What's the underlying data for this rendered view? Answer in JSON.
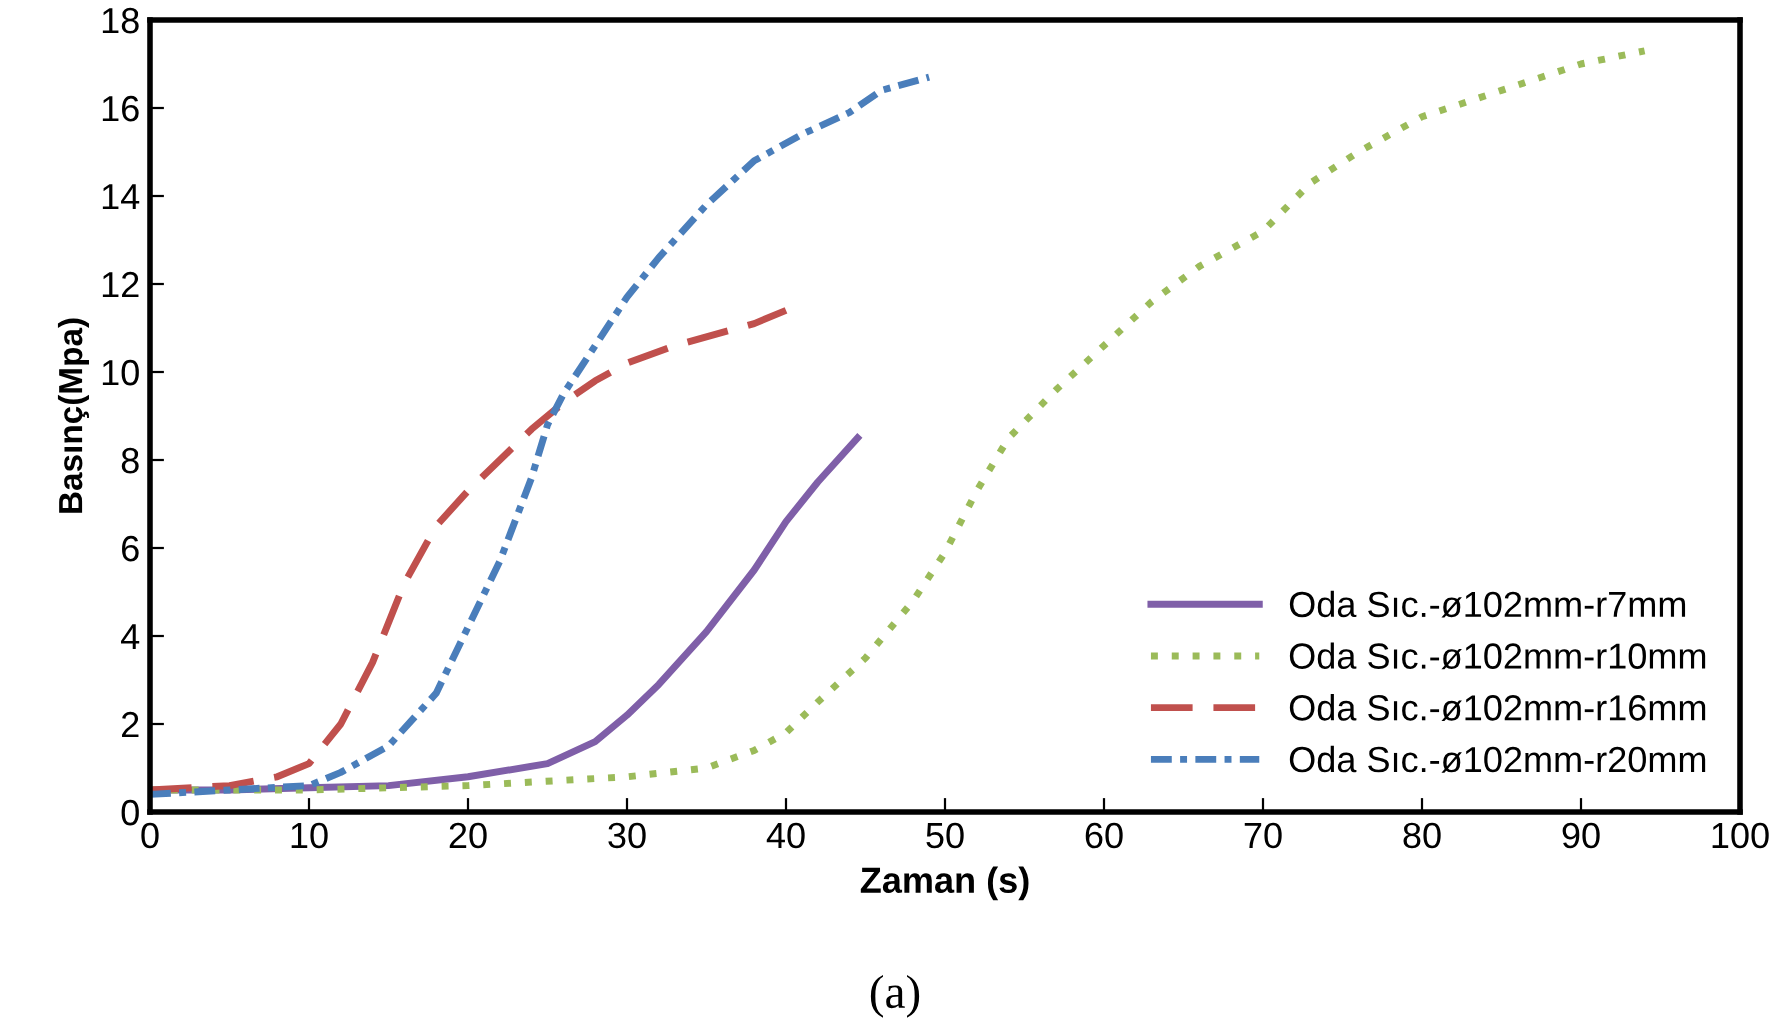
{
  "chart_data": {
    "type": "line",
    "xlabel": "Zaman (s)",
    "ylabel": "Basınç(Mpa)",
    "annotations": [
      "(a)"
    ],
    "xlim": [
      0,
      100
    ],
    "xticks": [
      0,
      10,
      20,
      30,
      40,
      50,
      60,
      70,
      80,
      90,
      100
    ],
    "ylim": [
      0,
      18
    ],
    "yticks": [
      0,
      2,
      4,
      6,
      8,
      10,
      12,
      14,
      16,
      18
    ],
    "grid": false,
    "legend": "bottom right",
    "marker": "none",
    "series": [
      {
        "name": "Oda Sıc.-ø102mm-r7mm",
        "color": "#7f5fa8",
        "line_style": "solid",
        "x": [
          0,
          5,
          10,
          15,
          20,
          25,
          28,
          30,
          32,
          35,
          38,
          40,
          42,
          44.5
        ],
        "values": [
          0.5,
          0.5,
          0.55,
          0.6,
          0.8,
          1.1,
          1.6,
          2.2,
          2.9,
          4.1,
          5.5,
          6.6,
          7.5,
          8.5
        ]
      },
      {
        "name": "Oda Sıc.-ø102mm-r10mm",
        "color": "#9bbb59",
        "line_style": "dotted",
        "x": [
          0,
          10,
          20,
          30,
          35,
          38,
          40,
          42,
          45,
          48,
          50,
          52,
          54,
          57,
          60,
          63,
          66,
          70,
          73,
          76,
          80,
          85,
          90,
          94
        ],
        "values": [
          0.5,
          0.5,
          0.6,
          0.8,
          1.0,
          1.4,
          1.8,
          2.5,
          3.5,
          4.8,
          5.9,
          7.3,
          8.5,
          9.6,
          10.6,
          11.6,
          12.4,
          13.2,
          14.3,
          15.0,
          15.8,
          16.4,
          17.0,
          17.3
        ]
      },
      {
        "name": "Oda Sıc.-ø102mm-r16mm",
        "color": "#c0504d",
        "line_style": "dashed",
        "x": [
          0,
          5,
          8,
          10,
          12,
          14,
          16,
          18,
          20,
          22,
          24,
          26,
          28,
          30,
          33,
          36,
          38,
          40
        ],
        "values": [
          0.5,
          0.6,
          0.8,
          1.1,
          2.0,
          3.4,
          5.2,
          6.5,
          7.3,
          8.0,
          8.7,
          9.3,
          9.8,
          10.2,
          10.6,
          10.9,
          11.1,
          11.4
        ]
      },
      {
        "name": "Oda Sıc.-ø102mm-r20mm",
        "color": "#4a7ebb",
        "line_style": "dashdot",
        "x": [
          0,
          5,
          10,
          12,
          15,
          18,
          20,
          22,
          24,
          25,
          26,
          28,
          30,
          32,
          35,
          38,
          41,
          44,
          46,
          49
        ],
        "values": [
          0.4,
          0.5,
          0.6,
          0.9,
          1.5,
          2.7,
          4.2,
          5.7,
          7.6,
          8.8,
          9.5,
          10.6,
          11.7,
          12.6,
          13.8,
          14.8,
          15.4,
          15.9,
          16.4,
          16.7
        ]
      }
    ]
  }
}
